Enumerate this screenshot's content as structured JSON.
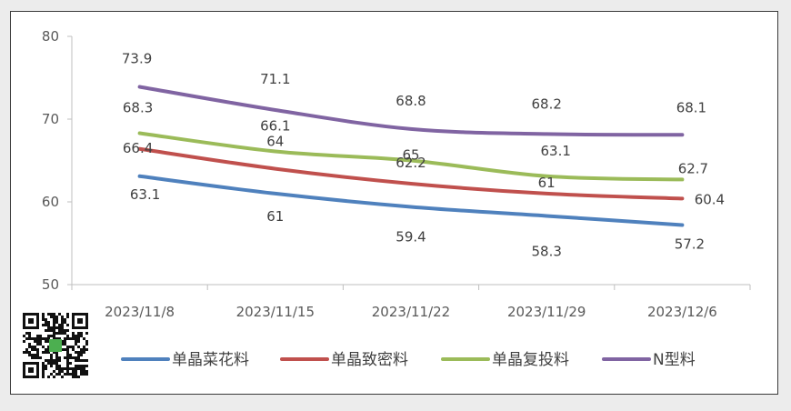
{
  "chart_data": {
    "type": "line",
    "title": "",
    "xlabel": "",
    "ylabel": "",
    "categories": [
      "2023/11/8",
      "2023/11/15",
      "2023/11/22",
      "2023/11/29",
      "2023/12/6"
    ],
    "ylim": [
      50,
      80
    ],
    "yticks": [
      50,
      60,
      70,
      80
    ],
    "grid": false,
    "legend_position": "bottom",
    "series": [
      {
        "name": "单晶菜花料",
        "color": "#4f81bd",
        "values": [
          63.1,
          61,
          59.4,
          58.3,
          57.2
        ],
        "labels": [
          "63.1",
          "61",
          "59.4",
          "58.3",
          "57.2"
        ]
      },
      {
        "name": "单晶致密料",
        "color": "#c0504d",
        "values": [
          66.4,
          64,
          62.2,
          61,
          60.4
        ],
        "labels": [
          "66.4",
          "64",
          "62.2",
          "61",
          "60.4"
        ]
      },
      {
        "name": "单晶复投料",
        "color": "#9bbb59",
        "values": [
          68.3,
          66.1,
          65,
          63.1,
          62.7
        ],
        "labels": [
          "68.3",
          "66.1",
          "65",
          "63.1",
          "62.7"
        ]
      },
      {
        "name": "N型料",
        "color": "#8064a2",
        "values": [
          73.9,
          71.1,
          68.8,
          68.2,
          68.1
        ],
        "labels": [
          "73.9",
          "71.1",
          "68.8",
          "68.2",
          "68.1"
        ]
      }
    ]
  },
  "qr_code": {
    "icon": "qr-code-icon"
  }
}
